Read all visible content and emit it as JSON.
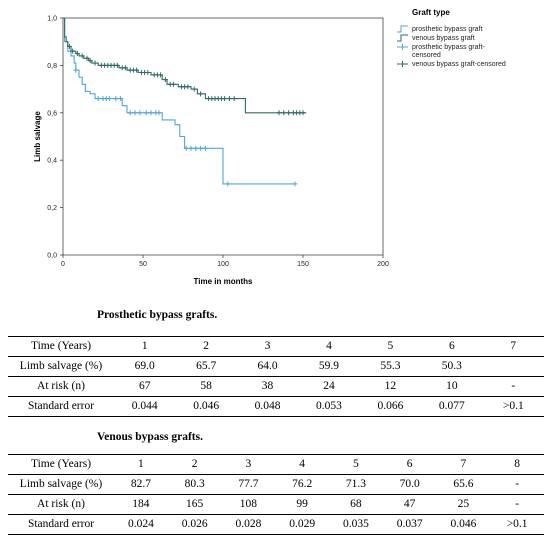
{
  "chart_data": {
    "type": "line",
    "title": "",
    "xlabel": "Time in months",
    "ylabel": "Limb salvage",
    "xlim": [
      0,
      200
    ],
    "ylim": [
      0.0,
      1.0
    ],
    "x_ticks": [
      "0",
      "50",
      "100",
      "150",
      "200"
    ],
    "y_ticks": [
      "0,0",
      "0,2",
      "0,4",
      "0,6",
      "0,8",
      "1,0"
    ],
    "grid": false,
    "legend_placement": "top-right",
    "legend": {
      "title": "Graft type",
      "entries": [
        {
          "label": "prosthetic bypass graft",
          "color": "#4da6dc",
          "symbol": "step"
        },
        {
          "label": "venous bypass graft",
          "color": "#2e6b64",
          "symbol": "step"
        },
        {
          "label": "prosthetic bypass graft-censored",
          "color": "#4da6dc",
          "symbol": "plus"
        },
        {
          "label": "venous bypass graft-censored",
          "color": "#2e6b64",
          "symbol": "plus"
        }
      ]
    },
    "series": [
      {
        "name": "prosthetic bypass graft",
        "color": "#4da6dc",
        "steps": [
          [
            0,
            1.0
          ],
          [
            1,
            0.9
          ],
          [
            3,
            0.86
          ],
          [
            5,
            0.84
          ],
          [
            7,
            0.81
          ],
          [
            8,
            0.78
          ],
          [
            10,
            0.75
          ],
          [
            12,
            0.72
          ],
          [
            14,
            0.69
          ],
          [
            17,
            0.68
          ],
          [
            20,
            0.66
          ],
          [
            37,
            0.63
          ],
          [
            40,
            0.6
          ],
          [
            62,
            0.57
          ],
          [
            70,
            0.55
          ],
          [
            73,
            0.5
          ],
          [
            76,
            0.45
          ],
          [
            100,
            0.3
          ],
          [
            145,
            0.3
          ]
        ],
        "censored": [
          [
            8,
            0.78
          ],
          [
            22,
            0.66
          ],
          [
            25,
            0.66
          ],
          [
            27,
            0.66
          ],
          [
            29,
            0.66
          ],
          [
            33,
            0.66
          ],
          [
            36,
            0.66
          ],
          [
            42,
            0.6
          ],
          [
            45,
            0.6
          ],
          [
            48,
            0.6
          ],
          [
            52,
            0.6
          ],
          [
            55,
            0.6
          ],
          [
            58,
            0.6
          ],
          [
            60,
            0.6
          ],
          [
            77,
            0.45
          ],
          [
            80,
            0.45
          ],
          [
            83,
            0.45
          ],
          [
            86,
            0.45
          ],
          [
            89,
            0.45
          ],
          [
            103,
            0.3
          ],
          [
            145,
            0.3
          ]
        ]
      },
      {
        "name": "venous bypass graft",
        "color": "#2e6b64",
        "steps": [
          [
            0,
            1.0
          ],
          [
            1,
            0.92
          ],
          [
            2,
            0.9
          ],
          [
            3,
            0.88
          ],
          [
            5,
            0.86
          ],
          [
            8,
            0.85
          ],
          [
            10,
            0.84
          ],
          [
            13,
            0.83
          ],
          [
            16,
            0.82
          ],
          [
            18,
            0.81
          ],
          [
            22,
            0.8
          ],
          [
            35,
            0.79
          ],
          [
            40,
            0.78
          ],
          [
            47,
            0.77
          ],
          [
            55,
            0.76
          ],
          [
            62,
            0.74
          ],
          [
            65,
            0.72
          ],
          [
            72,
            0.71
          ],
          [
            80,
            0.7
          ],
          [
            84,
            0.68
          ],
          [
            89,
            0.66
          ],
          [
            110,
            0.66
          ],
          [
            114,
            0.6
          ],
          [
            152,
            0.6
          ]
        ],
        "censored": [
          [
            4,
            0.88
          ],
          [
            6,
            0.86
          ],
          [
            9,
            0.85
          ],
          [
            12,
            0.84
          ],
          [
            15,
            0.83
          ],
          [
            17,
            0.82
          ],
          [
            20,
            0.81
          ],
          [
            24,
            0.8
          ],
          [
            26,
            0.8
          ],
          [
            28,
            0.8
          ],
          [
            30,
            0.8
          ],
          [
            32,
            0.8
          ],
          [
            34,
            0.8
          ],
          [
            37,
            0.79
          ],
          [
            39,
            0.79
          ],
          [
            42,
            0.78
          ],
          [
            44,
            0.78
          ],
          [
            46,
            0.78
          ],
          [
            49,
            0.77
          ],
          [
            51,
            0.77
          ],
          [
            53,
            0.77
          ],
          [
            57,
            0.76
          ],
          [
            59,
            0.76
          ],
          [
            61,
            0.76
          ],
          [
            64,
            0.74
          ],
          [
            67,
            0.72
          ],
          [
            69,
            0.72
          ],
          [
            74,
            0.71
          ],
          [
            76,
            0.71
          ],
          [
            78,
            0.71
          ],
          [
            82,
            0.7
          ],
          [
            86,
            0.68
          ],
          [
            91,
            0.66
          ],
          [
            93,
            0.66
          ],
          [
            95,
            0.66
          ],
          [
            97,
            0.66
          ],
          [
            99,
            0.66
          ],
          [
            101,
            0.66
          ],
          [
            104,
            0.66
          ],
          [
            107,
            0.66
          ],
          [
            135,
            0.6
          ],
          [
            138,
            0.6
          ],
          [
            141,
            0.6
          ],
          [
            144,
            0.6
          ],
          [
            146,
            0.6
          ],
          [
            148,
            0.6
          ],
          [
            150,
            0.6
          ]
        ]
      }
    ]
  },
  "tables": {
    "prosthetic": {
      "title": "Prosthetic bypass grafts.",
      "rows": [
        {
          "header": "Time (Years)",
          "cells": [
            "1",
            "2",
            "3",
            "4",
            "5",
            "6",
            "7"
          ]
        },
        {
          "header": "Limb salvage (%)",
          "cells": [
            "69.0",
            "65.7",
            "64.0",
            "59.9",
            "55.3",
            "50.3",
            ""
          ]
        },
        {
          "header": "At risk (n)",
          "cells": [
            "67",
            "58",
            "38",
            "24",
            "12",
            "10",
            "-"
          ]
        },
        {
          "header": "Standard error",
          "cells": [
            "0.044",
            "0.046",
            "0.048",
            "0.053",
            "0.066",
            "0.077",
            ">0.1"
          ]
        }
      ]
    },
    "venous": {
      "title": "Venous bypass grafts.",
      "rows": [
        {
          "header": "Time (Years)",
          "cells": [
            "1",
            "2",
            "3",
            "4",
            "5",
            "6",
            "7",
            "8"
          ]
        },
        {
          "header": "Limb salvage (%)",
          "cells": [
            "82.7",
            "80.3",
            "77.7",
            "76.2",
            "71.3",
            "70.0",
            "65.6",
            "-"
          ]
        },
        {
          "header": "At risk (n)",
          "cells": [
            "184",
            "165",
            "108",
            "99",
            "68",
            "47",
            "25",
            "-"
          ]
        },
        {
          "header": "Standard error",
          "cells": [
            "0.024",
            "0.026",
            "0.028",
            "0.029",
            "0.035",
            "0.037",
            "0.046",
            ">0.1"
          ]
        }
      ]
    }
  }
}
